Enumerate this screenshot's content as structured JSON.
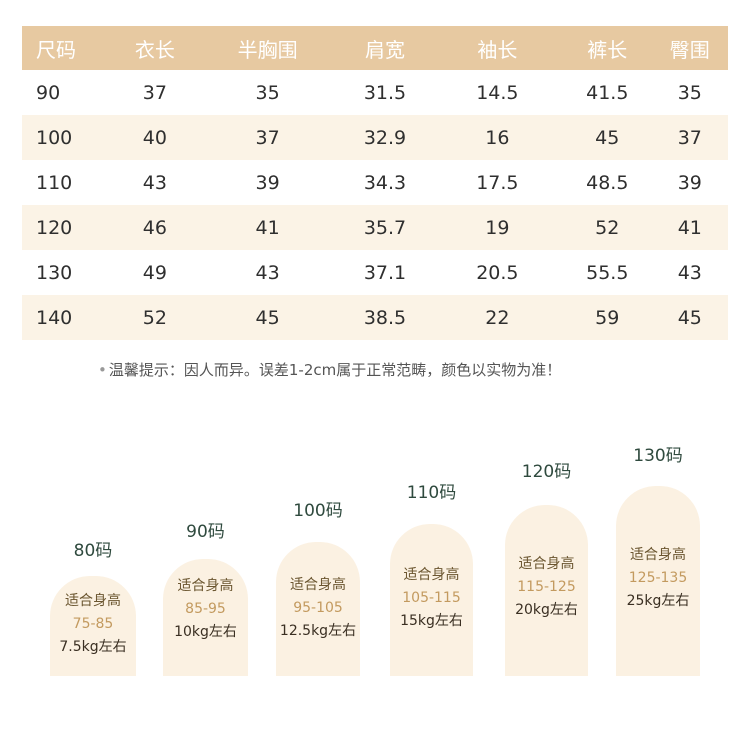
{
  "table": {
    "headers": [
      "尺码",
      "衣长",
      "半胸围",
      "肩宽",
      "袖长",
      "裤长",
      "臀围"
    ],
    "rows": [
      [
        "90",
        "37",
        "35",
        "31.5",
        "14.5",
        "41.5",
        "35"
      ],
      [
        "100",
        "40",
        "37",
        "32.9",
        "16",
        "45",
        "37"
      ],
      [
        "110",
        "43",
        "39",
        "34.3",
        "17.5",
        "48.5",
        "39"
      ],
      [
        "120",
        "46",
        "41",
        "35.7",
        "19",
        "52",
        "41"
      ],
      [
        "130",
        "49",
        "43",
        "37.1",
        "20.5",
        "55.5",
        "43"
      ],
      [
        "140",
        "52",
        "45",
        "38.5",
        "22",
        "59",
        "45"
      ]
    ]
  },
  "tip": {
    "bullet": "•",
    "text": "温馨提示：因人而异。误差1-2cm属于正常范畴，颜色以实物为准！"
  },
  "size_guide": [
    {
      "size": "80码",
      "line1": "适合身高",
      "line2": "75-85",
      "line3": "7.5kg左右"
    },
    {
      "size": "90码",
      "line1": "适合身高",
      "line2": "85-95",
      "line3": "10kg左右"
    },
    {
      "size": "100码",
      "line1": "适合身高",
      "line2": "95-105",
      "line3": "12.5kg左右"
    },
    {
      "size": "110码",
      "line1": "适合身高",
      "line2": "105-115",
      "line3": "15kg左右"
    },
    {
      "size": "120码",
      "line1": "适合身高",
      "line2": "115-125",
      "line3": "20kg左右"
    },
    {
      "size": "130码",
      "line1": "适合身高",
      "line2": "125-135",
      "line3": "25kg左右"
    }
  ],
  "colors": {
    "header_bg": "#e7c9a1",
    "alt_row_bg": "#fbf3e6",
    "arch_bg": "#fbf1e2",
    "size_label": "#2f4a3e",
    "height_value": "#c39a5f"
  }
}
